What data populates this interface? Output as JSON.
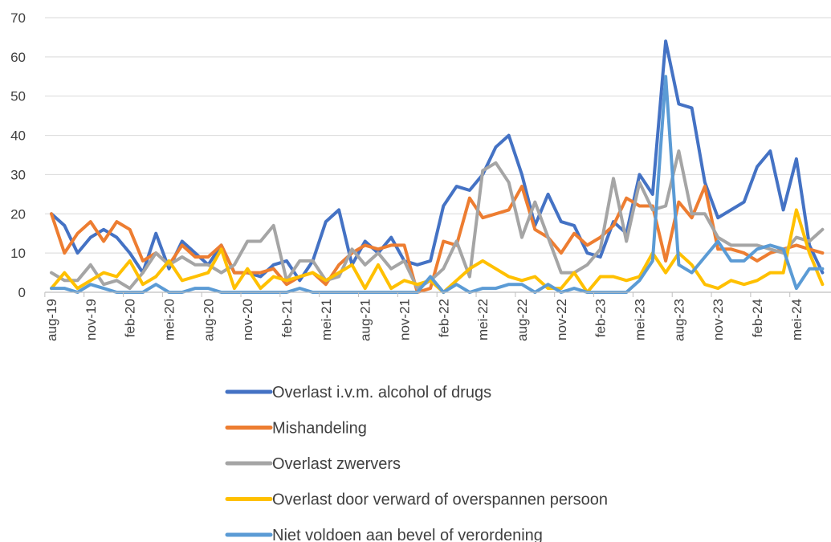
{
  "chart_data": {
    "type": "line",
    "title": "",
    "xlabel": "",
    "ylabel": "",
    "ylim": [
      0,
      70
    ],
    "yticks": [
      0,
      10,
      20,
      30,
      40,
      50,
      60,
      70
    ],
    "grid": "horizontal",
    "legend_position": "bottom",
    "x": [
      "aug-19",
      "sep-19",
      "okt-19",
      "nov-19",
      "dec-19",
      "jan-20",
      "feb-20",
      "mrt-20",
      "apr-20",
      "mei-20",
      "jun-20",
      "jul-20",
      "aug-20",
      "sep-20",
      "okt-20",
      "nov-20",
      "dec-20",
      "jan-21",
      "feb-21",
      "mrt-21",
      "apr-21",
      "mei-21",
      "jun-21",
      "jul-21",
      "aug-21",
      "sep-21",
      "okt-21",
      "nov-21",
      "dec-21",
      "jan-22",
      "feb-22",
      "mrt-22",
      "apr-22",
      "mei-22",
      "jun-22",
      "jul-22",
      "aug-22",
      "sep-22",
      "okt-22",
      "nov-22",
      "dec-22",
      "jan-23",
      "feb-23",
      "mrt-23",
      "apr-23",
      "mei-23",
      "jun-23",
      "jul-23",
      "aug-23",
      "sep-23",
      "okt-23",
      "nov-23",
      "dec-23",
      "jan-24",
      "feb-24",
      "mrt-24",
      "apr-24",
      "mei-24",
      "jun-24",
      "jul-24"
    ],
    "x_tick_labels": [
      "aug-19",
      "nov-19",
      "feb-20",
      "mei-20",
      "aug-20",
      "nov-20",
      "feb-21",
      "mei-21",
      "aug-21",
      "nov-21",
      "feb-22",
      "mei-22",
      "aug-22",
      "nov-22",
      "feb-23",
      "mei-23",
      "aug-23",
      "nov-23",
      "feb-24",
      "mei-24"
    ],
    "series": [
      {
        "name": "Overlast i.v.m. alcohol of drugs",
        "color": "#4472C4",
        "values": [
          20,
          17,
          10,
          14,
          16,
          14,
          10,
          5,
          15,
          6,
          13,
          10,
          7,
          12,
          5,
          5,
          4,
          7,
          8,
          3,
          8,
          18,
          21,
          7,
          13,
          10,
          14,
          8,
          7,
          8,
          22,
          27,
          26,
          30,
          37,
          40,
          30,
          17,
          25,
          18,
          17,
          10,
          9,
          18,
          15,
          30,
          25,
          64,
          48,
          47,
          28,
          19,
          21,
          23,
          32,
          36,
          21,
          34,
          12,
          5
        ]
      },
      {
        "name": "Mishandeling",
        "color": "#ED7D31",
        "values": [
          20,
          10,
          15,
          18,
          13,
          18,
          16,
          8,
          10,
          7,
          12,
          9,
          9,
          12,
          5,
          5,
          5,
          6,
          2,
          4,
          5,
          2,
          7,
          10,
          12,
          11,
          12,
          12,
          0,
          1,
          13,
          12,
          24,
          19,
          20,
          21,
          27,
          16,
          14,
          10,
          15,
          12,
          14,
          17,
          24,
          22,
          22,
          8,
          23,
          19,
          27,
          11,
          11,
          10,
          8,
          10,
          11,
          12,
          11,
          10
        ]
      },
      {
        "name": "Overlast zwervers",
        "color": "#A5A5A5",
        "values": [
          5,
          3,
          3,
          7,
          2,
          3,
          1,
          5,
          10,
          7,
          9,
          7,
          7,
          5,
          7,
          13,
          13,
          17,
          3,
          8,
          8,
          3,
          4,
          11,
          7,
          10,
          6,
          8,
          1,
          3,
          6,
          13,
          4,
          31,
          33,
          28,
          14,
          23,
          14,
          5,
          5,
          7,
          11,
          29,
          13,
          28,
          21,
          22,
          36,
          20,
          20,
          14,
          12,
          12,
          12,
          11,
          10,
          14,
          13,
          16
        ]
      },
      {
        "name": "Overlast door verward of overspannen persoon",
        "color": "#FFC000",
        "values": [
          1,
          5,
          1,
          3,
          5,
          4,
          8,
          2,
          4,
          8,
          3,
          4,
          5,
          11,
          1,
          6,
          1,
          4,
          3,
          4,
          5,
          3,
          5,
          7,
          1,
          7,
          1,
          3,
          2,
          3,
          0,
          3,
          6,
          8,
          6,
          4,
          3,
          4,
          1,
          1,
          5,
          0,
          4,
          4,
          3,
          4,
          10,
          5,
          10,
          7,
          2,
          1,
          3,
          2,
          3,
          5,
          5,
          21,
          10,
          2
        ]
      },
      {
        "name": "Niet voldoen aan bevel of verordening",
        "color": "#5B9BD5",
        "values": [
          1,
          1,
          0,
          2,
          1,
          0,
          0,
          0,
          2,
          0,
          0,
          1,
          1,
          0,
          0,
          0,
          0,
          0,
          0,
          1,
          0,
          0,
          0,
          0,
          0,
          0,
          0,
          0,
          0,
          4,
          0,
          2,
          0,
          1,
          1,
          2,
          2,
          0,
          2,
          0,
          1,
          0,
          0,
          0,
          0,
          3,
          8,
          55,
          7,
          5,
          9,
          13,
          8,
          8,
          11,
          12,
          11,
          1,
          6,
          6
        ]
      }
    ]
  }
}
